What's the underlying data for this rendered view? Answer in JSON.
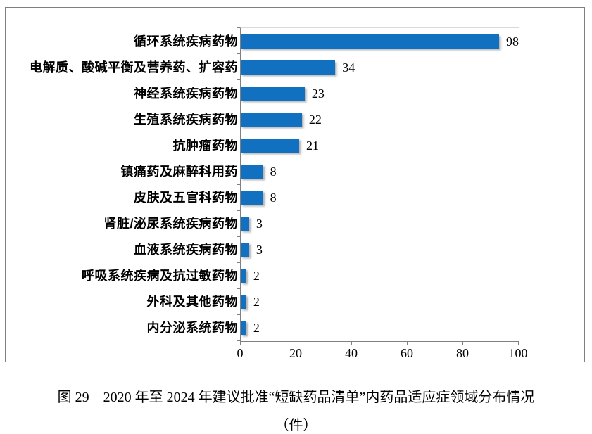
{
  "chart_data": {
    "type": "bar",
    "orientation": "horizontal",
    "categories": [
      "循环系统疾病药物",
      "电解质、酸碱平衡及营养药、扩容药",
      "神经系统疾病药物",
      "生殖系统疾病药物",
      "抗肿瘤药物",
      "镇痛药及麻醉科用药",
      "皮肤及五官科药物",
      "肾脏/泌尿系统疾病药物",
      "血液系统疾病药物",
      "呼吸系统疾病及抗过敏药物",
      "外科及其他药物",
      "内分泌系统药物"
    ],
    "values": [
      98,
      34,
      23,
      22,
      21,
      8,
      8,
      3,
      3,
      2,
      2,
      2
    ],
    "x_ticks": [
      0,
      20,
      40,
      60,
      80,
      100
    ],
    "xlim": [
      0,
      100
    ],
    "grid": false,
    "legend": "none",
    "value_labels": true,
    "bar_color": "#1170c0",
    "axis_color": "#808080",
    "plot_border_color": "#d9d9d9",
    "title": "",
    "xlabel": "",
    "ylabel": ""
  },
  "caption": {
    "line1": "图 29　2020 年至 2024 年建议批准“短缺药品清单”内药品适应症领域分布情况",
    "line2": "（件）"
  }
}
